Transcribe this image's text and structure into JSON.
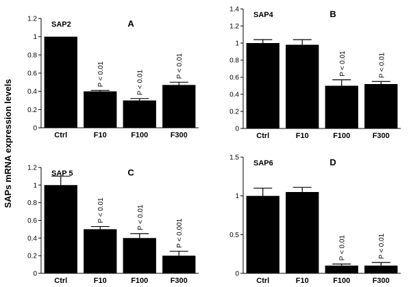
{
  "ylabel": "SAPs mRNA expression levels",
  "chart_data": [
    {
      "type": "bar",
      "name": "SAP2",
      "letter": "A",
      "categories": [
        "Ctrl",
        "F10",
        "F100",
        "F300"
      ],
      "values": [
        1.0,
        0.4,
        0.3,
        0.47
      ],
      "errors": [
        0.0,
        0.01,
        0.02,
        0.03
      ],
      "annotations": [
        "",
        "P < 0.01",
        "P < 0.01",
        "P < 0.01"
      ],
      "ylim": [
        0,
        1.2
      ],
      "yticks": [
        "0",
        "0.2",
        "0.4",
        "0.6",
        "0.8",
        "1",
        "1.2"
      ],
      "ytick_values": [
        0,
        0.2,
        0.4,
        0.6,
        0.8,
        1.0,
        1.2
      ],
      "bar_color": "#000000"
    },
    {
      "type": "bar",
      "name": "SAP4",
      "letter": "B",
      "categories": [
        "Ctrl",
        "F10",
        "F100",
        "F300"
      ],
      "values": [
        1.0,
        0.98,
        0.5,
        0.52
      ],
      "errors": [
        0.04,
        0.06,
        0.07,
        0.03
      ],
      "annotations": [
        "",
        "",
        "P < 0.01",
        "P < 0.01"
      ],
      "ylim": [
        0,
        1.4
      ],
      "yticks": [
        "0",
        "0.2",
        "0.4",
        "0.6",
        "0.8",
        "1",
        "1.2",
        "1.4"
      ],
      "ytick_values": [
        0,
        0.2,
        0.4,
        0.6,
        0.8,
        1.0,
        1.2,
        1.4
      ],
      "bar_color": "#000000"
    },
    {
      "type": "bar",
      "name": "SAP 5",
      "letter": "C",
      "categories": [
        "Ctrl",
        "F10",
        "F100",
        "F300"
      ],
      "values": [
        1.0,
        0.5,
        0.4,
        0.2
      ],
      "errors": [
        0.1,
        0.03,
        0.05,
        0.05
      ],
      "annotations": [
        "",
        "P < 0.01",
        "P < 0.01",
        "P < 0.001"
      ],
      "ylim": [
        0,
        1.2
      ],
      "yticks": [
        "0",
        "0.2",
        "0.4",
        "0.6",
        "0.8",
        "1",
        "1.2"
      ],
      "ytick_values": [
        0,
        0.2,
        0.4,
        0.6,
        0.8,
        1.0,
        1.2
      ],
      "bar_color": "#000000"
    },
    {
      "type": "bar",
      "name": "SAP6",
      "letter": "D",
      "categories": [
        "Ctrl",
        "F10",
        "F100",
        "F300"
      ],
      "values": [
        1.0,
        1.05,
        0.1,
        0.1
      ],
      "errors": [
        0.1,
        0.06,
        0.02,
        0.04
      ],
      "annotations": [
        "",
        "",
        "P < 0.01",
        "P < 0.01"
      ],
      "ylim": [
        0,
        1.5
      ],
      "yticks": [
        "0",
        "0.5",
        "1",
        "1.5"
      ],
      "ytick_values": [
        0,
        0.5,
        1.0,
        1.5
      ],
      "bar_color": "#000000"
    }
  ]
}
